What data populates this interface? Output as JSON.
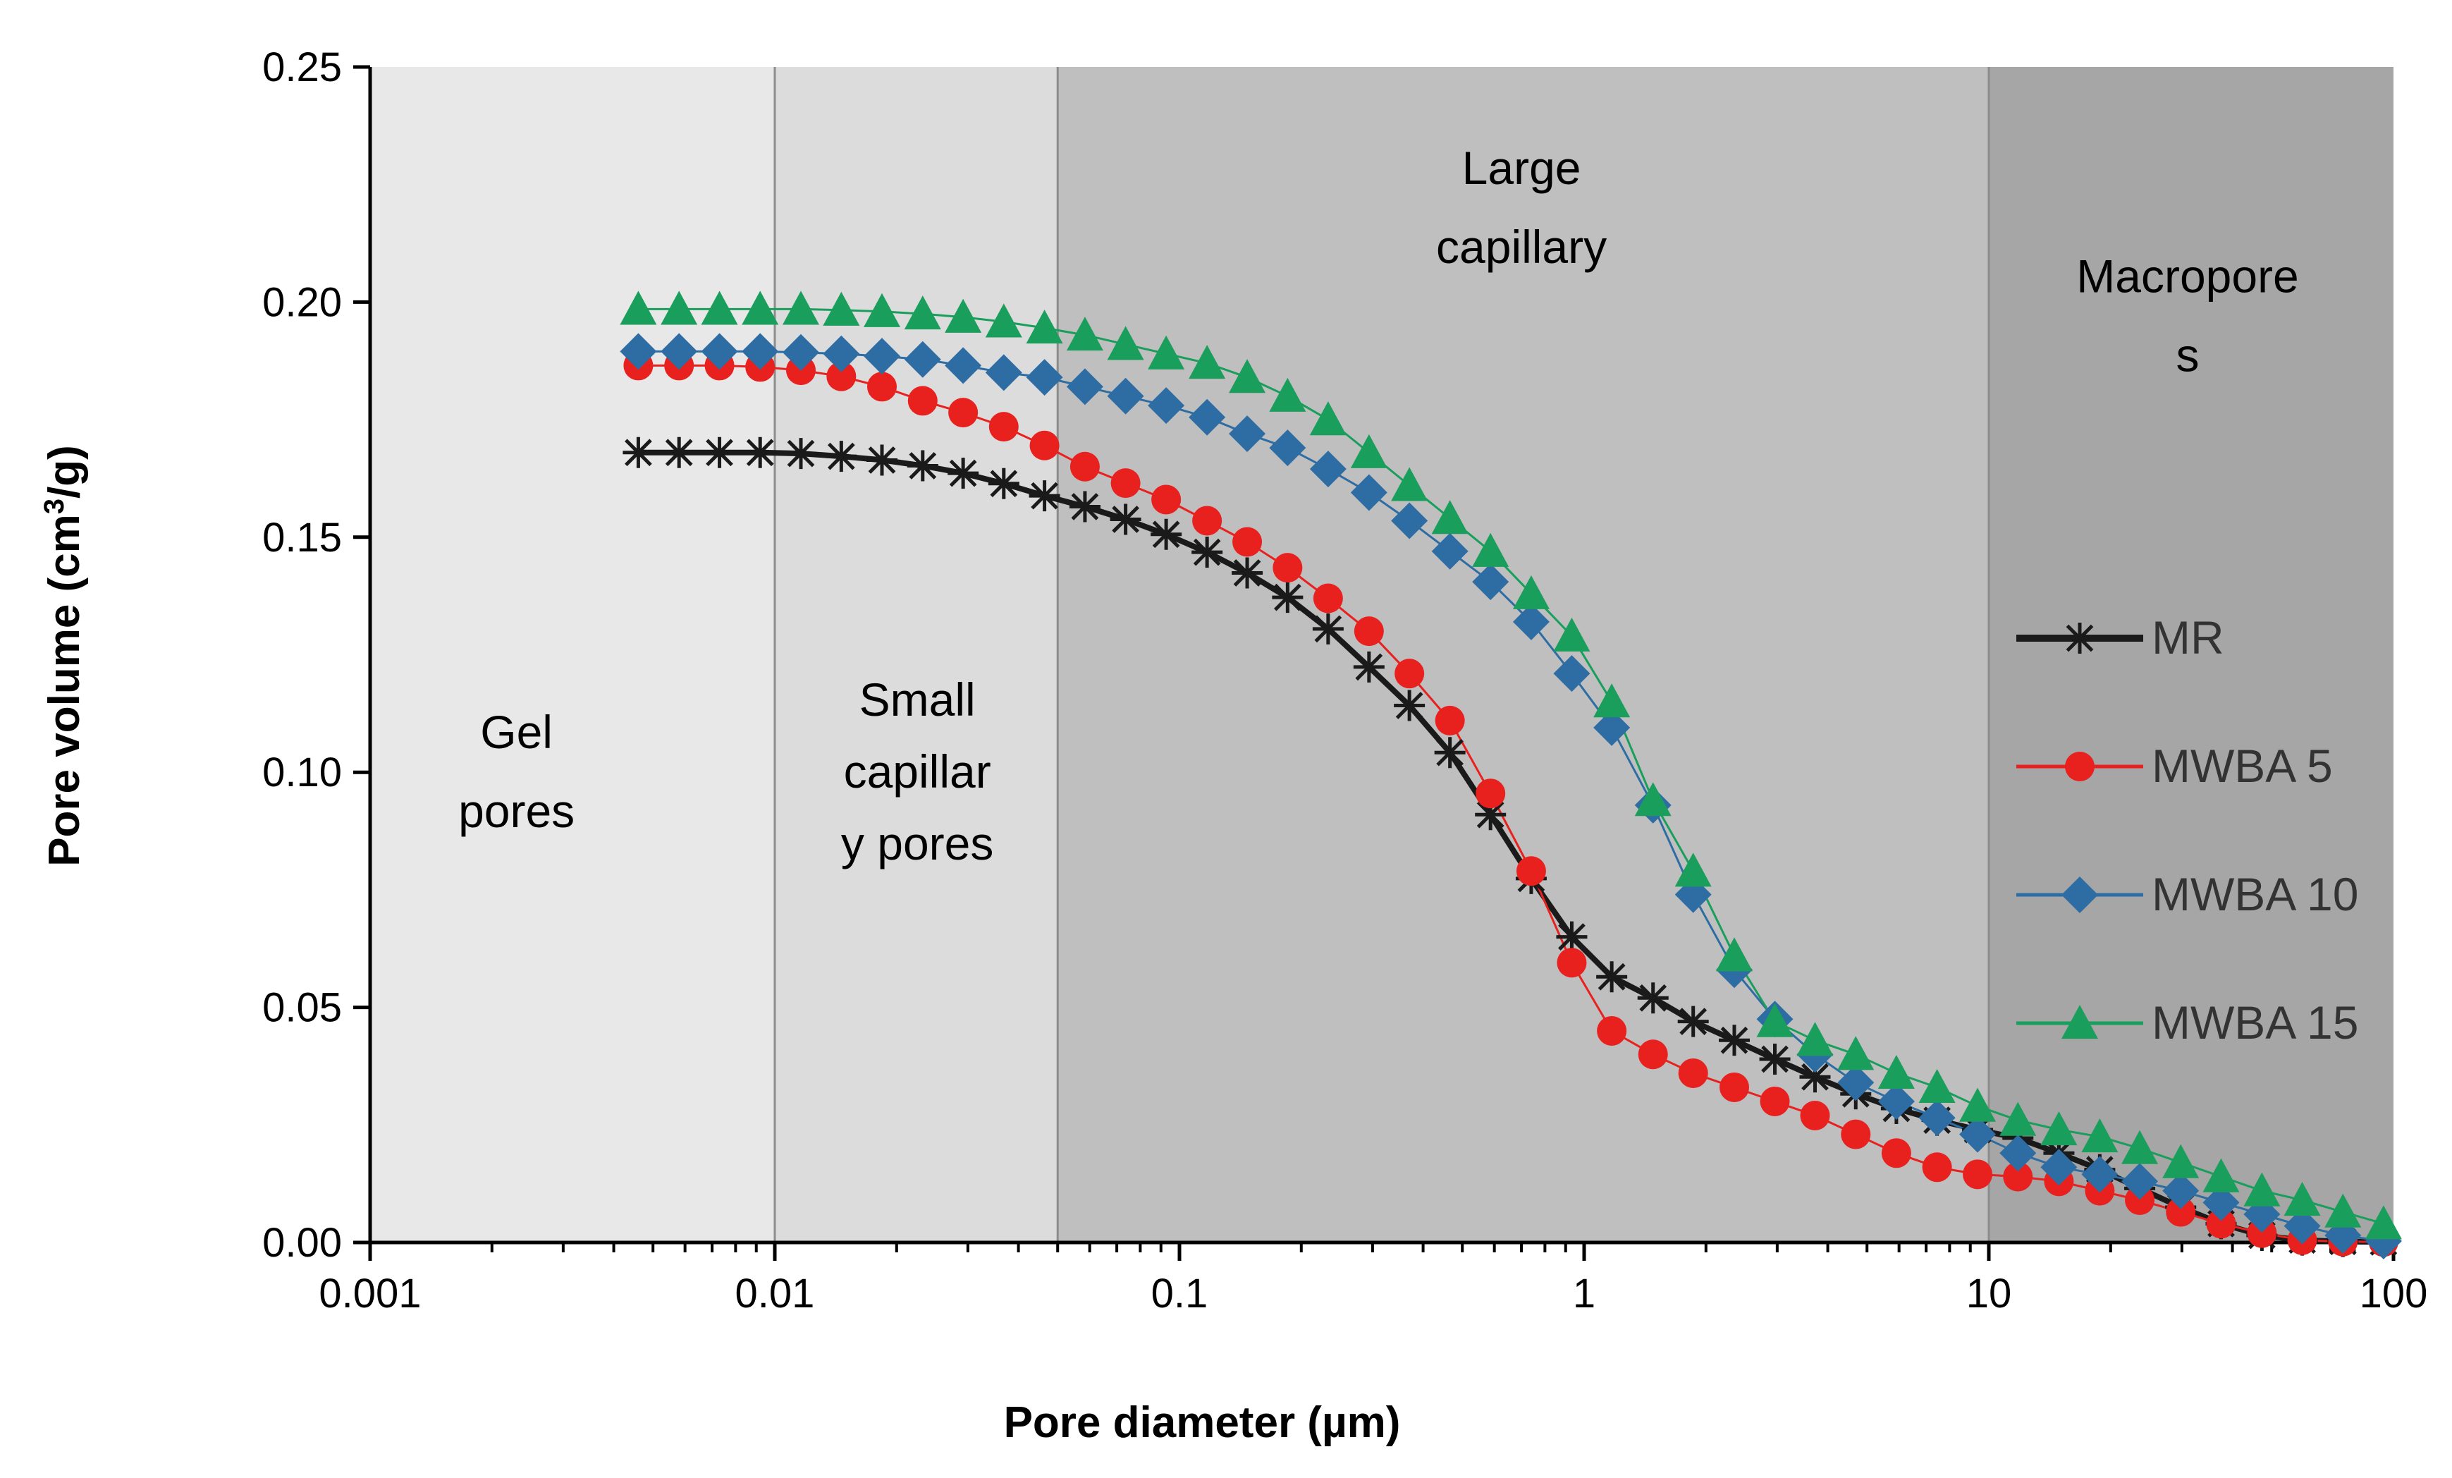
{
  "chart_data": {
    "type": "line",
    "title": "",
    "xlabel": "Pore diameter (µm)",
    "ylabel_parts": [
      "Pore volume (cm",
      "3",
      "/g)"
    ],
    "xscale": "log",
    "xlim": [
      0.001,
      100
    ],
    "ylim": [
      0,
      0.25
    ],
    "x_ticks": [
      {
        "value": 0.001,
        "label": "0.001"
      },
      {
        "value": 0.01,
        "label": "0.01"
      },
      {
        "value": 0.1,
        "label": "0.1"
      },
      {
        "value": 1,
        "label": "1"
      },
      {
        "value": 10,
        "label": "10"
      },
      {
        "value": 100,
        "label": "100"
      }
    ],
    "y_ticks": [
      {
        "value": 0,
        "label": "0.00"
      },
      {
        "value": 0.05,
        "label": "0.05"
      },
      {
        "value": 0.1,
        "label": "0.10"
      },
      {
        "value": 0.15,
        "label": "0.15"
      },
      {
        "value": 0.2,
        "label": "0.20"
      },
      {
        "value": 0.25,
        "label": "0.25"
      }
    ],
    "regions": [
      {
        "name": "gel",
        "from": 0.001,
        "to": 0.01,
        "color": "#e8e8e8",
        "label_lines": [
          "Gel",
          "pores"
        ],
        "label_x": 0.0023,
        "label_y": 0.1
      },
      {
        "name": "small-capillary",
        "from": 0.01,
        "to": 0.05,
        "color": "#dcdcdc",
        "label_lines": [
          "Small",
          "capillar",
          "y pores"
        ],
        "label_x": 0.0225,
        "label_y": 0.1
      },
      {
        "name": "large-capillary",
        "from": 0.05,
        "to": 10,
        "color": "#bfbfbf",
        "label_lines": [
          "Large",
          "capillary"
        ],
        "label_x": 0.7,
        "label_y": 0.22
      },
      {
        "name": "macropores",
        "from": 10,
        "to": 100,
        "color": "#a6a6a6",
        "label_lines": [
          "Macropore",
          "s"
        ],
        "label_x": 31,
        "label_y": 0.197
      }
    ],
    "x": [
      0.0046,
      0.0058,
      0.0073,
      0.0092,
      0.0116,
      0.0146,
      0.0184,
      0.0232,
      0.0292,
      0.0368,
      0.0464,
      0.0584,
      0.0736,
      0.0927,
      0.117,
      0.147,
      0.185,
      0.233,
      0.294,
      0.37,
      0.466,
      0.587,
      0.74,
      0.932,
      1.17,
      1.48,
      1.86,
      2.35,
      2.96,
      3.72,
      4.69,
      5.91,
      7.45,
      9.38,
      11.8,
      14.9,
      18.8,
      23.6,
      29.8,
      37.5,
      47.3,
      59.5,
      75,
      94.5
    ],
    "series": [
      {
        "name": "MR",
        "color": "#1a1a1a",
        "marker": "star",
        "line_width": 8,
        "values": [
          0.168,
          0.168,
          0.168,
          0.168,
          0.1678,
          0.1672,
          0.1664,
          0.1652,
          0.1636,
          0.1614,
          0.1588,
          0.1565,
          0.1538,
          0.1506,
          0.1468,
          0.1424,
          0.1372,
          0.1305,
          0.1224,
          0.1142,
          0.1042,
          0.091,
          0.0774,
          0.065,
          0.0565,
          0.052,
          0.047,
          0.043,
          0.039,
          0.0352,
          0.0316,
          0.0285,
          0.026,
          0.024,
          0.0222,
          0.019,
          0.0155,
          0.0115,
          0.0075,
          0.004,
          0.0015,
          0.0005,
          0.0002,
          0.0001
        ]
      },
      {
        "name": "MWBA 5",
        "color": "#e8201e",
        "marker": "circle",
        "line_width": 3,
        "values": [
          0.1865,
          0.1865,
          0.1865,
          0.1862,
          0.1855,
          0.1842,
          0.182,
          0.179,
          0.1765,
          0.1735,
          0.1695,
          0.165,
          0.1615,
          0.158,
          0.1535,
          0.149,
          0.1435,
          0.137,
          0.13,
          0.121,
          0.111,
          0.0955,
          0.079,
          0.0595,
          0.045,
          0.04,
          0.036,
          0.033,
          0.03,
          0.027,
          0.023,
          0.019,
          0.016,
          0.0145,
          0.014,
          0.013,
          0.011,
          0.009,
          0.0065,
          0.004,
          0.002,
          0.0005,
          0.0002,
          0.0001
        ]
      },
      {
        "name": "MWBA 10",
        "color": "#2e6da4",
        "marker": "diamond",
        "line_width": 3,
        "values": [
          0.1895,
          0.1895,
          0.1895,
          0.1895,
          0.1893,
          0.189,
          0.1885,
          0.1878,
          0.1865,
          0.185,
          0.184,
          0.182,
          0.18,
          0.178,
          0.1755,
          0.172,
          0.169,
          0.1645,
          0.1595,
          0.1535,
          0.147,
          0.1405,
          0.132,
          0.121,
          0.1095,
          0.093,
          0.074,
          0.058,
          0.0475,
          0.04,
          0.034,
          0.03,
          0.0265,
          0.023,
          0.019,
          0.016,
          0.0145,
          0.013,
          0.011,
          0.0085,
          0.006,
          0.0035,
          0.0015,
          0.0003
        ]
      },
      {
        "name": "MWBA 15",
        "color": "#1a9e5c",
        "marker": "triangle",
        "line_width": 3,
        "values": [
          0.1985,
          0.1985,
          0.1985,
          0.1985,
          0.1985,
          0.1983,
          0.198,
          0.1975,
          0.1968,
          0.1958,
          0.1945,
          0.193,
          0.191,
          0.189,
          0.187,
          0.184,
          0.18,
          0.175,
          0.168,
          0.161,
          0.154,
          0.147,
          0.138,
          0.129,
          0.115,
          0.094,
          0.079,
          0.061,
          0.047,
          0.043,
          0.04,
          0.036,
          0.033,
          0.029,
          0.026,
          0.024,
          0.0225,
          0.02,
          0.017,
          0.014,
          0.011,
          0.009,
          0.0065,
          0.004
        ]
      }
    ],
    "legend_position": "right"
  }
}
